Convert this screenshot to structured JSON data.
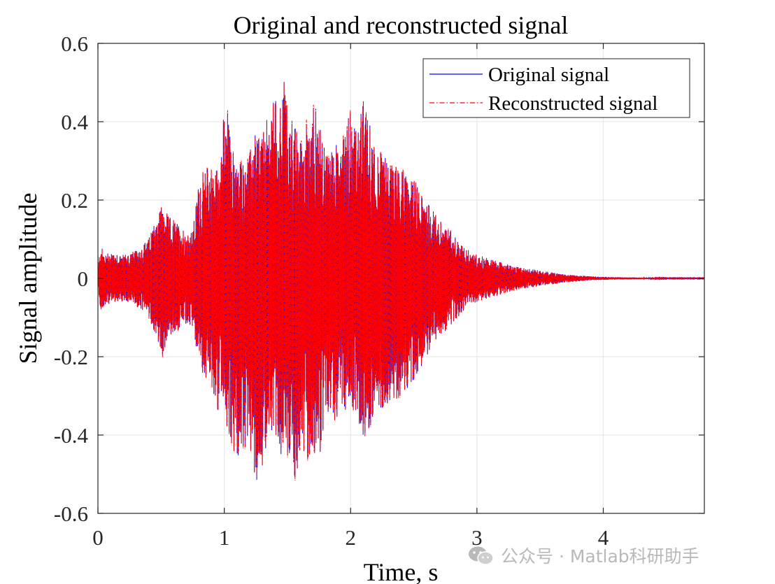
{
  "chart_data": {
    "type": "line",
    "title": "Original and reconstructed signal",
    "xlabel": "Time, s",
    "ylabel": "Signal amplitude",
    "xlim": [
      0,
      4.8
    ],
    "ylim": [
      -0.6,
      0.6
    ],
    "xticks": [
      0,
      1,
      2,
      3,
      4
    ],
    "xtick_labels": [
      "0",
      "1",
      "2",
      "3",
      "4"
    ],
    "yticks": [
      0.6,
      0.4,
      0.2,
      0,
      -0.2,
      -0.4,
      -0.6
    ],
    "ytick_labels": [
      "0.6",
      "0.4",
      "0.2",
      "0",
      "-0.2",
      "-0.4",
      "-0.6"
    ],
    "grid": true,
    "legend_position": "top-right",
    "series": [
      {
        "name": "Original signal",
        "color": "#0000ff",
        "line_style": "solid",
        "envelope": {
          "t": [
            0,
            0.02,
            0.05,
            0.1,
            0.2,
            0.3,
            0.4,
            0.45,
            0.48,
            0.5,
            0.55,
            0.6,
            0.7,
            0.75,
            0.8,
            0.85,
            0.9,
            0.95,
            1.0,
            1.02,
            1.05,
            1.1,
            1.2,
            1.25,
            1.3,
            1.35,
            1.4,
            1.45,
            1.47,
            1.5,
            1.55,
            1.6,
            1.7,
            1.75,
            1.8,
            1.9,
            2.0,
            2.05,
            2.1,
            2.15,
            2.2,
            2.3,
            2.4,
            2.5,
            2.6,
            2.7,
            2.8,
            2.9,
            3.0,
            3.1,
            3.2,
            3.3,
            3.4,
            3.5,
            3.7,
            3.9,
            4.1,
            4.3,
            4.5,
            4.8
          ],
          "upper": [
            0.02,
            0.09,
            0.06,
            0.07,
            0.06,
            0.07,
            0.1,
            0.15,
            0.17,
            0.19,
            0.16,
            0.15,
            0.12,
            0.12,
            0.25,
            0.28,
            0.3,
            0.28,
            0.42,
            0.45,
            0.35,
            0.3,
            0.32,
            0.38,
            0.37,
            0.41,
            0.47,
            0.45,
            0.54,
            0.43,
            0.4,
            0.35,
            0.46,
            0.4,
            0.32,
            0.35,
            0.45,
            0.37,
            0.45,
            0.4,
            0.34,
            0.3,
            0.28,
            0.25,
            0.2,
            0.15,
            0.12,
            0.08,
            0.06,
            0.05,
            0.04,
            0.03,
            0.025,
            0.02,
            0.01,
            0.005,
            0.003,
            0.002,
            0.001,
            0.001
          ],
          "lower": [
            -0.02,
            -0.08,
            -0.08,
            -0.06,
            -0.06,
            -0.07,
            -0.1,
            -0.14,
            -0.17,
            -0.22,
            -0.15,
            -0.14,
            -0.12,
            -0.13,
            -0.22,
            -0.25,
            -0.28,
            -0.35,
            -0.3,
            -0.38,
            -0.42,
            -0.47,
            -0.42,
            -0.52,
            -0.48,
            -0.4,
            -0.38,
            -0.46,
            -0.43,
            -0.45,
            -0.52,
            -0.48,
            -0.45,
            -0.46,
            -0.38,
            -0.35,
            -0.32,
            -0.36,
            -0.43,
            -0.38,
            -0.34,
            -0.32,
            -0.3,
            -0.26,
            -0.2,
            -0.15,
            -0.12,
            -0.08,
            -0.06,
            -0.05,
            -0.04,
            -0.03,
            -0.025,
            -0.02,
            -0.01,
            -0.005,
            -0.003,
            -0.002,
            -0.001,
            -0.001
          ]
        }
      },
      {
        "name": "Reconstructed signal",
        "color": "#ff0000",
        "line_style": "dash-dot",
        "envelope_same_as": "Original signal"
      }
    ]
  },
  "watermark": {
    "text": "公众号 · Matlab科研助手",
    "icon": "wechat-logo-icon"
  }
}
